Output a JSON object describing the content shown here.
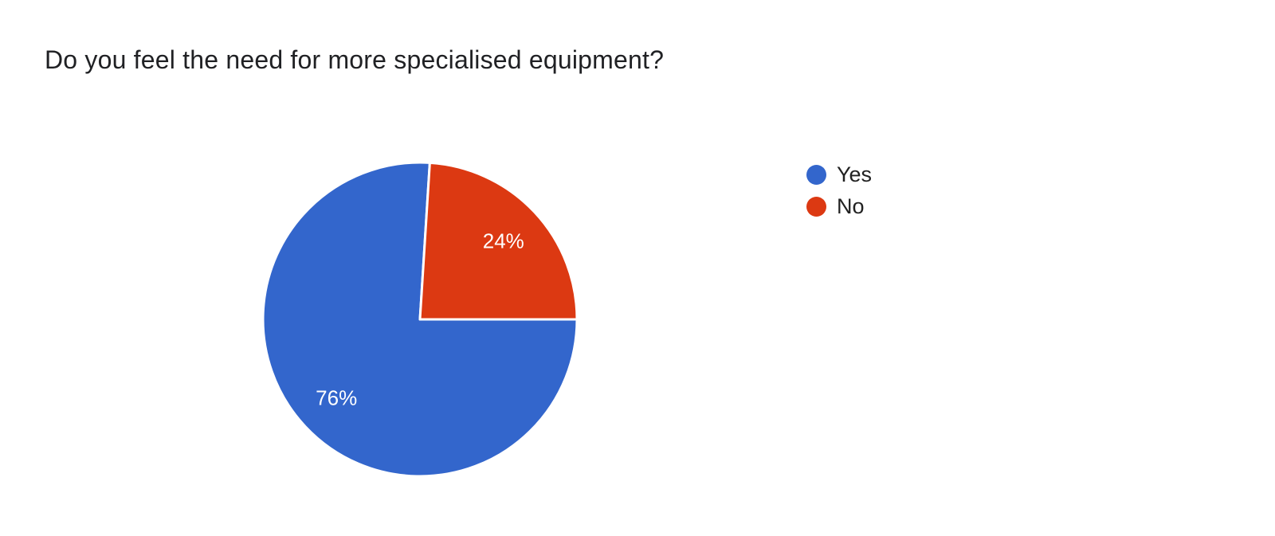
{
  "page": {
    "background_color": "#ffffff"
  },
  "question_title": "Do you feel the need for more specialised equipment?",
  "chart_data": {
    "type": "pie",
    "title": "Do you feel the need for more specialised equipment?",
    "categories": [
      "Yes",
      "No"
    ],
    "values": [
      76,
      24
    ],
    "value_unit": "percent",
    "slice_labels": [
      "76%",
      "24%"
    ],
    "colors": [
      "#3366cc",
      "#dc3912"
    ],
    "slice_label_color": "#ffffff",
    "separator_color": "#ffffff",
    "legend_position": "right",
    "start_angle_deg": 90,
    "direction": "clockwise",
    "title_color": "#202124",
    "legend_text_color": "#212121"
  }
}
